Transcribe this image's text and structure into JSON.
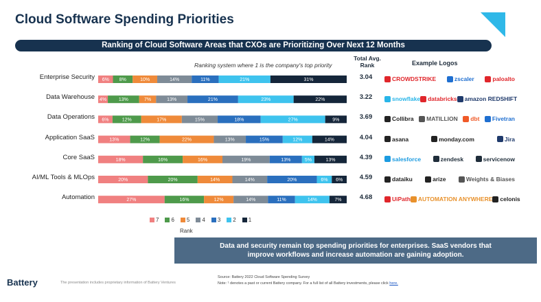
{
  "page": {
    "title": "Cloud Software Spending Priorities",
    "banner": "Ranking of Cloud Software Areas that CXOs are Prioritizing Over Next 12 Months",
    "subnote": "Ranking system where 1 is the company's top priority",
    "avg_header_1": "Total Avg.",
    "avg_header_2": "Rank",
    "logos_header": "Example Logos",
    "callout_line1": "Data and security remain top spending priorities for enterprises. SaaS vendors that",
    "callout_line2": "improve workflows and increase automation are gaining adoption.",
    "brand": "Battery",
    "disclaimer": "The presentation includes proprietary information of Battery Ventures",
    "source_line1": "Source: Battery 2022 Cloud Software Spending Survey",
    "source_line2": "Note: ¹ denotes a past or current Battery company. For a full list of all Battery investments, please click ",
    "source_link": "here."
  },
  "chart_data": {
    "type": "bar",
    "orientation": "horizontal",
    "stacked": true,
    "title": "Ranking of Cloud Software Areas that CXOs are Prioritizing Over Next 12 Months",
    "xlabel": "Rank",
    "xlim": [
      0,
      100
    ],
    "legend_position": "bottom",
    "categories": [
      "Enterprise Security",
      "Data Warehouse",
      "Data Operations",
      "Application SaaS",
      "Core SaaS",
      "AI/ML Tools & MLOps",
      "Automation"
    ],
    "series": [
      {
        "name": "7",
        "color": "#f08080",
        "values": [
          6,
          4,
          6,
          13,
          18,
          20,
          27
        ]
      },
      {
        "name": "6",
        "color": "#4e9a4b",
        "values": [
          8,
          13,
          12,
          12,
          16,
          20,
          16
        ]
      },
      {
        "name": "5",
        "color": "#ef8a3a",
        "values": [
          10,
          7,
          17,
          22,
          16,
          14,
          12
        ]
      },
      {
        "name": "4",
        "color": "#7e8b97",
        "values": [
          14,
          13,
          15,
          13,
          19,
          14,
          14
        ]
      },
      {
        "name": "3",
        "color": "#2a6fbe",
        "values": [
          11,
          21,
          18,
          15,
          13,
          20,
          11
        ]
      },
      {
        "name": "2",
        "color": "#3ec3ee",
        "values": [
          21,
          23,
          27,
          12,
          5,
          6,
          14
        ]
      },
      {
        "name": "1",
        "color": "#15263a",
        "values": [
          31,
          22,
          9,
          14,
          13,
          6,
          7
        ]
      }
    ],
    "avg_rank": [
      "3.04",
      "3.22",
      "3.69",
      "4.04",
      "4.39",
      "4.59",
      "4.68"
    ]
  },
  "logos": [
    [
      {
        "name": "CROWDSTRIKE",
        "color": "#e0262b"
      },
      {
        "name": "zscaler",
        "color": "#1f6fd0"
      },
      {
        "name": "paloalto",
        "color": "#e0262b"
      }
    ],
    [
      {
        "name": "snowflake",
        "color": "#29b5e8"
      },
      {
        "name": "databricks",
        "color": "#e0262b"
      },
      {
        "name": "amazon REDSHIFT",
        "color": "#1f3a6b"
      }
    ],
    [
      {
        "name": "Collibra",
        "color": "#222222"
      },
      {
        "name": "MATILLION",
        "color": "#555555"
      },
      {
        "name": "dbt",
        "color": "#f05a28"
      },
      {
        "name": "Fivetran",
        "color": "#1f6fd0"
      }
    ],
    [
      {
        "name": "asana",
        "color": "#222222"
      },
      {
        "name": "monday.com",
        "color": "#222222"
      },
      {
        "name": "Jira",
        "color": "#1f3a6b"
      }
    ],
    [
      {
        "name": "salesforce",
        "color": "#1c9be0"
      },
      {
        "name": "zendesk",
        "color": "#1f2d3a"
      },
      {
        "name": "servicenow",
        "color": "#1f2d3a"
      }
    ],
    [
      {
        "name": "dataiku",
        "color": "#222222"
      },
      {
        "name": "arize",
        "color": "#222222"
      },
      {
        "name": "Weights & Biases",
        "color": "#555555"
      }
    ],
    [
      {
        "name": "UiPath",
        "color": "#e0262b"
      },
      {
        "name": "AUTOMATION ANYWHERE",
        "color": "#e8912b"
      },
      {
        "name": "celonis",
        "color": "#222222"
      }
    ]
  ]
}
